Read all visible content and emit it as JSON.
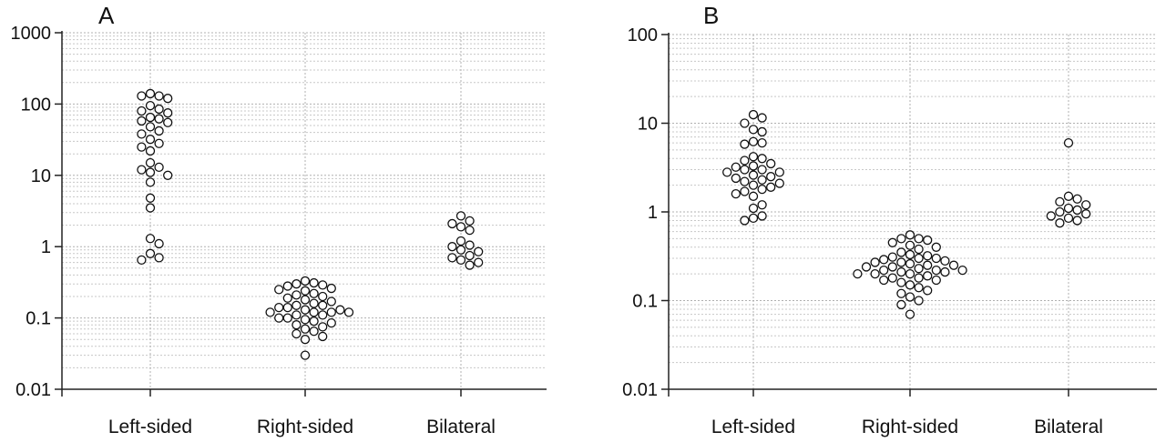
{
  "chart_data": [
    {
      "type": "scatter",
      "panel_label": "A",
      "yscale": "log",
      "ylim": [
        0.01,
        1000
      ],
      "yticks": [
        "0.01",
        "0.1",
        "1",
        "10",
        "100",
        "1000"
      ],
      "categories": [
        "Left-sided",
        "Right-sided",
        "Bilateral"
      ],
      "grid": true,
      "series": [
        {
          "values": [
            140,
            130,
            130,
            120,
            95,
            85,
            80,
            75,
            65,
            62,
            58,
            55,
            48,
            42,
            38,
            32,
            28,
            25,
            22,
            15,
            13,
            12,
            11,
            10,
            8,
            4.8,
            3.5,
            1.3,
            1.1,
            0.8,
            0.7,
            0.65
          ]
        },
        {
          "values": [
            0.33,
            0.31,
            0.3,
            0.29,
            0.28,
            0.26,
            0.25,
            0.24,
            0.22,
            0.21,
            0.2,
            0.19,
            0.18,
            0.17,
            0.16,
            0.15,
            0.15,
            0.14,
            0.14,
            0.13,
            0.13,
            0.12,
            0.12,
            0.12,
            0.12,
            0.11,
            0.11,
            0.1,
            0.1,
            0.095,
            0.09,
            0.085,
            0.08,
            0.075,
            0.07,
            0.065,
            0.06,
            0.055,
            0.05,
            0.03
          ]
        },
        {
          "values": [
            2.7,
            2.3,
            2.1,
            1.9,
            1.7,
            1.2,
            1.05,
            1.0,
            0.9,
            0.85,
            0.75,
            0.7,
            0.65,
            0.6,
            0.55
          ]
        }
      ]
    },
    {
      "type": "scatter",
      "panel_label": "B",
      "yscale": "log",
      "ylim": [
        0.01,
        100
      ],
      "yticks": [
        "0.01",
        "0.1",
        "1",
        "10",
        "100"
      ],
      "categories": [
        "Left-sided",
        "Right-sided",
        "Bilateral"
      ],
      "grid": true,
      "series": [
        {
          "values": [
            12.5,
            11.5,
            10,
            8.5,
            8,
            6.2,
            6,
            5.8,
            4.2,
            4,
            3.8,
            3.5,
            3.3,
            3.2,
            3,
            3,
            2.8,
            2.8,
            2.6,
            2.5,
            2.4,
            2.3,
            2.2,
            2.1,
            2,
            1.9,
            1.8,
            1.7,
            1.6,
            1.5,
            1.2,
            1.1,
            0.9,
            0.85,
            0.8
          ]
        },
        {
          "values": [
            0.55,
            0.5,
            0.5,
            0.48,
            0.45,
            0.42,
            0.4,
            0.38,
            0.35,
            0.33,
            0.32,
            0.31,
            0.3,
            0.3,
            0.29,
            0.28,
            0.27,
            0.27,
            0.26,
            0.25,
            0.25,
            0.24,
            0.24,
            0.23,
            0.22,
            0.22,
            0.22,
            0.21,
            0.21,
            0.2,
            0.2,
            0.2,
            0.19,
            0.18,
            0.18,
            0.17,
            0.17,
            0.16,
            0.15,
            0.14,
            0.13,
            0.12,
            0.11,
            0.1,
            0.09,
            0.07
          ]
        },
        {
          "values": [
            6,
            1.5,
            1.4,
            1.3,
            1.2,
            1.1,
            1.05,
            1.0,
            0.95,
            0.9,
            0.85,
            0.8,
            0.75
          ]
        }
      ]
    }
  ]
}
